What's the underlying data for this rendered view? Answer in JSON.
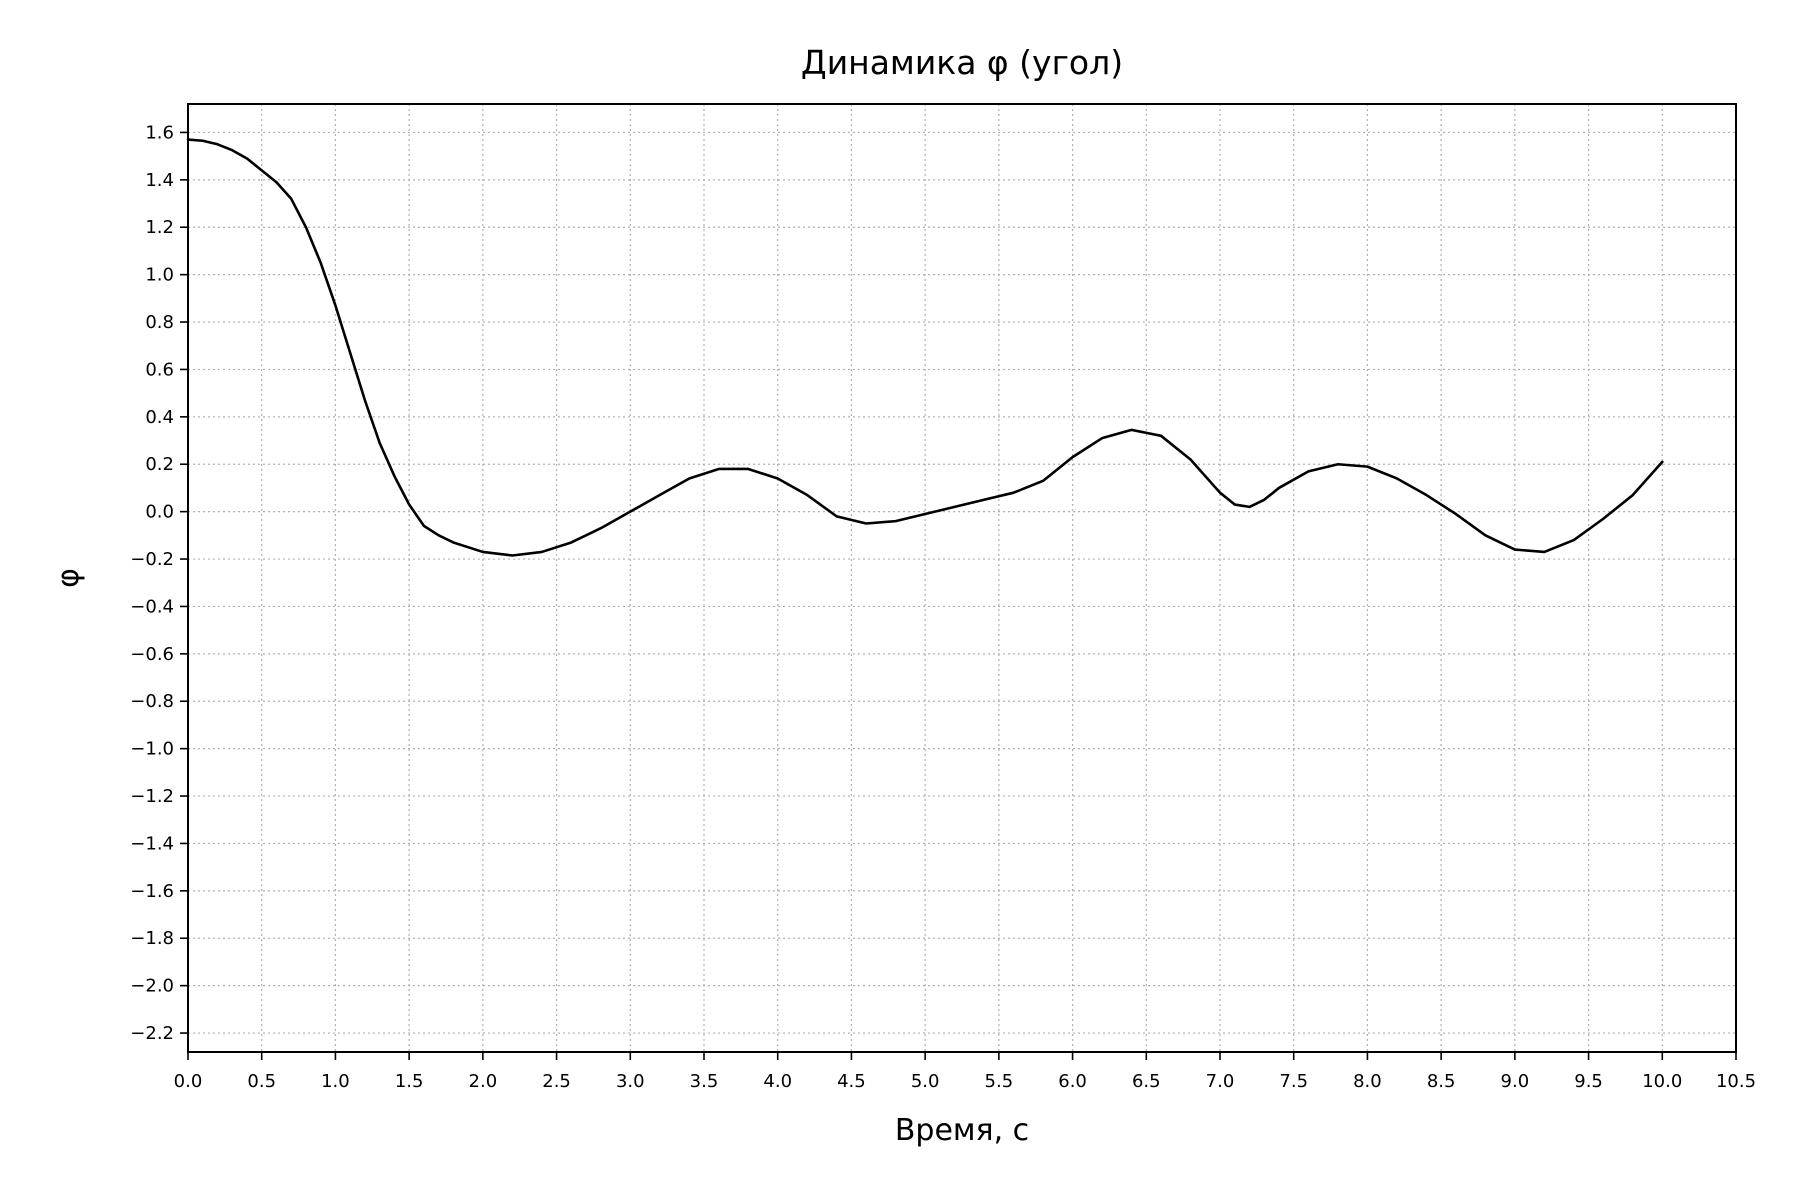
{
  "chart_data": {
    "type": "line",
    "title": "Динамика φ (угол)",
    "xlabel": "Время, с",
    "ylabel": "φ",
    "xlim": [
      0.0,
      10.5
    ],
    "ylim": [
      -2.28,
      1.72
    ],
    "grid": true,
    "xticks": [
      "0.0",
      "0.5",
      "1.0",
      "1.5",
      "2.0",
      "2.5",
      "3.0",
      "3.5",
      "4.0",
      "4.5",
      "5.0",
      "5.5",
      "6.0",
      "6.5",
      "7.0",
      "7.5",
      "8.0",
      "8.5",
      "9.0",
      "9.5",
      "10.0",
      "10.5"
    ],
    "yticks": [
      "1.6",
      "1.4",
      "1.2",
      "1.0",
      "0.8",
      "0.6",
      "0.4",
      "0.2",
      "0.0",
      "−0.2",
      "−0.4",
      "−0.6",
      "−0.8",
      "−1.0",
      "−1.2",
      "−1.4",
      "−1.6",
      "−1.8",
      "−2.0",
      "−2.2"
    ],
    "series": [
      {
        "color": "#000000",
        "x": [
          0.0,
          0.1,
          0.2,
          0.3,
          0.4,
          0.5,
          0.6,
          0.7,
          0.8,
          0.9,
          1.0,
          1.1,
          1.2,
          1.3,
          1.4,
          1.5,
          1.6,
          1.7,
          1.8,
          2.0,
          2.2,
          2.4,
          2.6,
          2.8,
          3.0,
          3.2,
          3.4,
          3.6,
          3.8,
          4.0,
          4.2,
          4.4,
          4.6,
          4.8,
          5.0,
          5.2,
          5.4,
          5.6,
          5.8,
          6.0,
          6.2,
          6.4,
          6.6,
          6.8,
          7.0,
          7.1,
          7.2,
          7.3,
          7.4,
          7.6,
          7.8,
          8.0,
          8.2,
          8.4,
          8.6,
          8.8,
          9.0,
          9.2,
          9.4,
          9.6,
          9.8,
          10.0
        ],
        "y": [
          1.57,
          1.565,
          1.55,
          1.525,
          1.49,
          1.44,
          1.39,
          1.32,
          1.2,
          1.05,
          0.87,
          0.67,
          0.47,
          0.29,
          0.15,
          0.03,
          -0.06,
          -0.1,
          -0.13,
          -0.17,
          -0.185,
          -0.17,
          -0.13,
          -0.07,
          0.0,
          0.07,
          0.14,
          0.18,
          0.18,
          0.14,
          0.07,
          -0.02,
          -0.05,
          -0.04,
          -0.01,
          0.02,
          0.05,
          0.08,
          0.13,
          0.23,
          0.31,
          0.345,
          0.32,
          0.22,
          0.08,
          0.03,
          0.02,
          0.05,
          0.1,
          0.17,
          0.2,
          0.19,
          0.14,
          0.07,
          -0.01,
          -0.1,
          -0.16,
          -0.17,
          -0.12,
          -0.03,
          0.07,
          0.21
        ]
      }
    ]
  }
}
